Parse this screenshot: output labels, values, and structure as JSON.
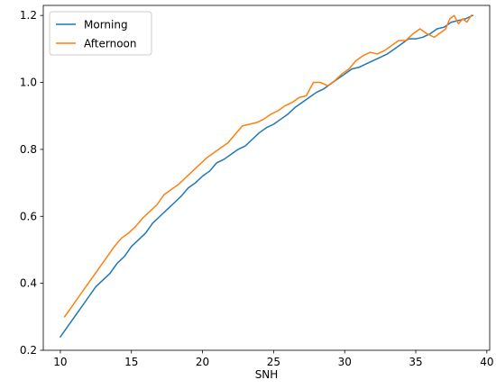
{
  "chart_data": {
    "type": "line",
    "title": "",
    "xlabel": "SNH",
    "ylabel": "",
    "xlim": [
      8.8,
      40.2
    ],
    "ylim": [
      0.2,
      1.23
    ],
    "xticks": [
      10,
      15,
      20,
      25,
      30,
      35,
      40
    ],
    "yticks": [
      0.2,
      0.4,
      0.6,
      0.8,
      1.0,
      1.2
    ],
    "xtick_labels": [
      "10",
      "15",
      "20",
      "25",
      "30",
      "35",
      "40"
    ],
    "ytick_labels": [
      "0.2",
      "0.4",
      "0.6",
      "0.8",
      "1.0",
      "1.2"
    ],
    "grid": false,
    "legend_position": "top-left",
    "series": [
      {
        "name": "Morning",
        "color": "#1f77b4",
        "x": [
          10.0,
          10.5,
          11.0,
          11.5,
          12.0,
          12.5,
          13.0,
          13.5,
          14.0,
          14.5,
          15.0,
          15.5,
          16.0,
          16.5,
          17.0,
          17.5,
          18.0,
          18.5,
          19.0,
          19.5,
          20.0,
          20.5,
          21.0,
          21.5,
          22.0,
          22.5,
          23.0,
          23.5,
          24.0,
          24.5,
          25.0,
          25.5,
          26.0,
          26.5,
          27.0,
          27.5,
          28.0,
          28.5,
          29.0,
          29.5,
          30.0,
          30.5,
          31.0,
          31.5,
          32.0,
          32.5,
          33.0,
          33.5,
          34.0,
          34.5,
          35.0,
          35.5,
          36.0,
          36.5,
          37.0,
          37.5,
          38.0,
          38.5,
          39.0
        ],
        "y": [
          0.24,
          0.27,
          0.3,
          0.33,
          0.36,
          0.39,
          0.41,
          0.43,
          0.46,
          0.48,
          0.51,
          0.53,
          0.55,
          0.58,
          0.6,
          0.62,
          0.64,
          0.66,
          0.685,
          0.7,
          0.72,
          0.735,
          0.76,
          0.77,
          0.785,
          0.8,
          0.81,
          0.83,
          0.85,
          0.865,
          0.875,
          0.89,
          0.905,
          0.925,
          0.94,
          0.955,
          0.97,
          0.98,
          0.995,
          1.01,
          1.025,
          1.04,
          1.045,
          1.055,
          1.065,
          1.075,
          1.085,
          1.1,
          1.115,
          1.13,
          1.13,
          1.135,
          1.145,
          1.16,
          1.165,
          1.18,
          1.185,
          1.19,
          1.2
        ]
      },
      {
        "name": "Afternoon",
        "color": "#ff7f0e",
        "x": [
          10.3,
          10.8,
          11.3,
          11.8,
          12.3,
          12.8,
          13.3,
          13.8,
          14.3,
          14.8,
          15.3,
          15.8,
          16.3,
          16.8,
          17.3,
          17.8,
          18.3,
          18.8,
          19.3,
          19.8,
          20.3,
          20.8,
          21.3,
          21.8,
          22.3,
          22.8,
          23.3,
          23.8,
          24.3,
          24.8,
          25.3,
          25.8,
          26.3,
          26.8,
          27.3,
          27.8,
          28.3,
          28.8,
          29.3,
          29.8,
          30.3,
          30.8,
          31.3,
          31.8,
          32.3,
          32.8,
          33.3,
          33.8,
          34.3,
          34.8,
          35.3,
          35.8,
          36.3,
          36.8,
          37.1,
          37.4,
          37.7,
          38.0,
          38.3,
          38.6,
          38.9
        ],
        "y": [
          0.3,
          0.33,
          0.36,
          0.39,
          0.42,
          0.45,
          0.48,
          0.51,
          0.535,
          0.55,
          0.57,
          0.595,
          0.615,
          0.635,
          0.665,
          0.68,
          0.695,
          0.715,
          0.735,
          0.755,
          0.775,
          0.79,
          0.805,
          0.82,
          0.845,
          0.87,
          0.875,
          0.88,
          0.89,
          0.905,
          0.915,
          0.93,
          0.94,
          0.955,
          0.96,
          1.0,
          1.0,
          0.99,
          1.005,
          1.025,
          1.04,
          1.065,
          1.08,
          1.09,
          1.085,
          1.095,
          1.11,
          1.125,
          1.125,
          1.145,
          1.16,
          1.145,
          1.135,
          1.15,
          1.16,
          1.19,
          1.2,
          1.175,
          1.19,
          1.18,
          1.2
        ]
      }
    ]
  }
}
